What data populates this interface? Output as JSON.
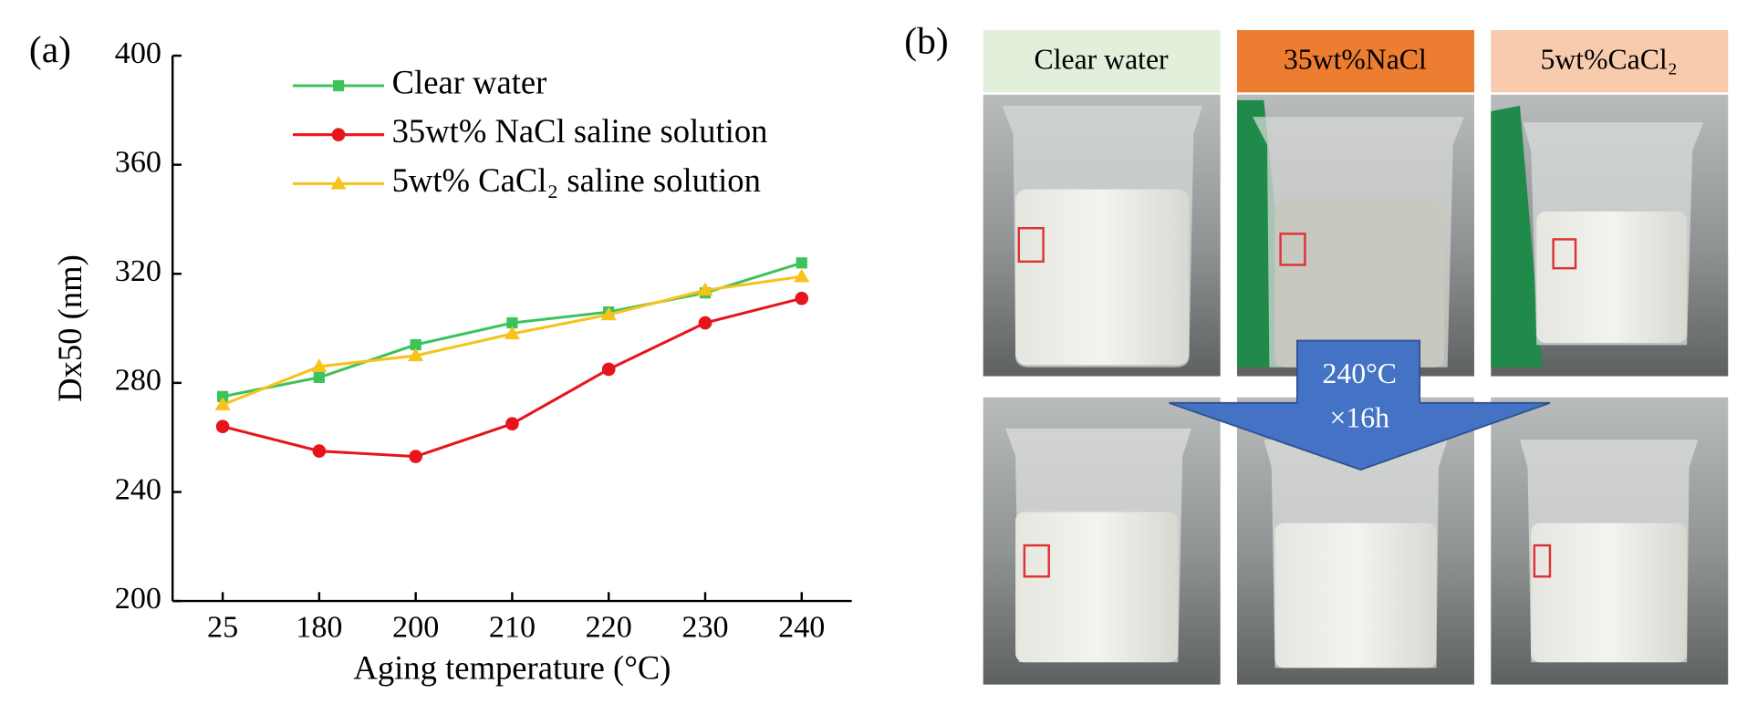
{
  "chart_data": {
    "type": "line",
    "panel_label": "(a)",
    "xlabel": "Aging temperature (°C)",
    "ylabel": "Dx50 (nm)",
    "categories": [
      "25",
      "180",
      "200",
      "210",
      "220",
      "230",
      "240"
    ],
    "series": [
      {
        "name": "Clear water",
        "color": "#3cc35c",
        "marker": "square",
        "values": [
          275,
          282,
          294,
          302,
          306,
          313,
          324
        ]
      },
      {
        "name": "35wt% NaCl saline solution",
        "color": "#e8141c",
        "marker": "circle",
        "values": [
          264,
          255,
          253,
          265,
          285,
          302,
          311
        ]
      },
      {
        "name": "5wt% CaCl₂ saline solution",
        "color": "#f7c21a",
        "marker": "triangle",
        "values": [
          272,
          286,
          290,
          298,
          305,
          314,
          319
        ]
      }
    ],
    "ylim": [
      200,
      400
    ],
    "yticks": [
      200,
      240,
      280,
      320,
      360,
      400
    ]
  },
  "photo_panel": {
    "panel_label": "(b)",
    "headers": [
      "Clear water",
      "35wt%NaCl",
      "5wt%CaCl₂"
    ],
    "arrow_text": [
      "240°C",
      "×16h"
    ]
  }
}
